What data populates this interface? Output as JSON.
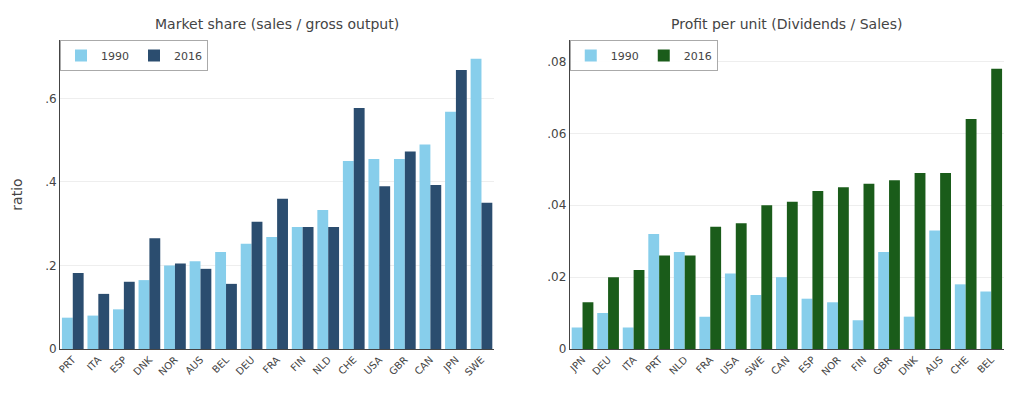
{
  "chart_data": [
    {
      "type": "bar",
      "title": "Market share (sales / gross output)",
      "ylabel": "ratio",
      "categories": [
        "PRT",
        "ITA",
        "ESP",
        "DNK",
        "NOR",
        "AUS",
        "BEL",
        "DEU",
        "FRA",
        "FIN",
        "NLD",
        "CHE",
        "USA",
        "GBR",
        "CAN",
        "JPN",
        "SWE"
      ],
      "series": [
        {
          "name": "1990",
          "color": "#87CEEB",
          "values": [
            0.075,
            0.08,
            0.095,
            0.165,
            0.2,
            0.21,
            0.232,
            0.252,
            0.268,
            0.292,
            0.333,
            0.45,
            0.455,
            0.455,
            0.49,
            0.568,
            0.695
          ]
        },
        {
          "name": "2016",
          "color": "#2B4D6F",
          "values": [
            0.182,
            0.132,
            0.161,
            0.265,
            0.205,
            0.192,
            0.156,
            0.305,
            0.36,
            0.292,
            0.292,
            0.577,
            0.39,
            0.473,
            0.393,
            0.668,
            0.35
          ]
        }
      ],
      "ylim": [
        0,
        0.74
      ],
      "yticks": [
        0,
        {
          "value": 0.2,
          "label": ".2"
        },
        {
          "value": 0.4,
          "label": ".4"
        },
        {
          "value": 0.6,
          "label": ".6"
        }
      ],
      "grid": true,
      "legend": "upper left"
    },
    {
      "type": "bar",
      "title": "Profit per unit (Dividends / Sales)",
      "categories": [
        "JPN",
        "DEU",
        "ITA",
        "PRT",
        "NLD",
        "FRA",
        "USA",
        "SWE",
        "CAN",
        "ESP",
        "NOR",
        "FIN",
        "GBR",
        "DNK",
        "AUS",
        "CHE",
        "BEL"
      ],
      "series": [
        {
          "name": "1990",
          "color": "#87CEEB",
          "values": [
            0.006,
            0.01,
            0.006,
            0.032,
            0.027,
            0.009,
            0.021,
            0.015,
            0.02,
            0.014,
            0.013,
            0.008,
            0.027,
            0.009,
            0.033,
            0.018,
            0.016
          ]
        },
        {
          "name": "2016",
          "color": "#1A5C1A",
          "values": [
            0.013,
            0.02,
            0.022,
            0.026,
            0.026,
            0.034,
            0.035,
            0.04,
            0.041,
            0.044,
            0.045,
            0.046,
            0.047,
            0.049,
            0.049,
            0.064,
            0.078
          ]
        }
      ],
      "ylim": [
        0,
        0.086
      ],
      "yticks": [
        0,
        {
          "value": 0.02,
          "label": ".02"
        },
        {
          "value": 0.04,
          "label": ".04"
        },
        {
          "value": 0.06,
          "label": ".06"
        },
        {
          "value": 0.08,
          "label": ".08"
        }
      ],
      "grid": true,
      "legend": "upper left"
    }
  ]
}
